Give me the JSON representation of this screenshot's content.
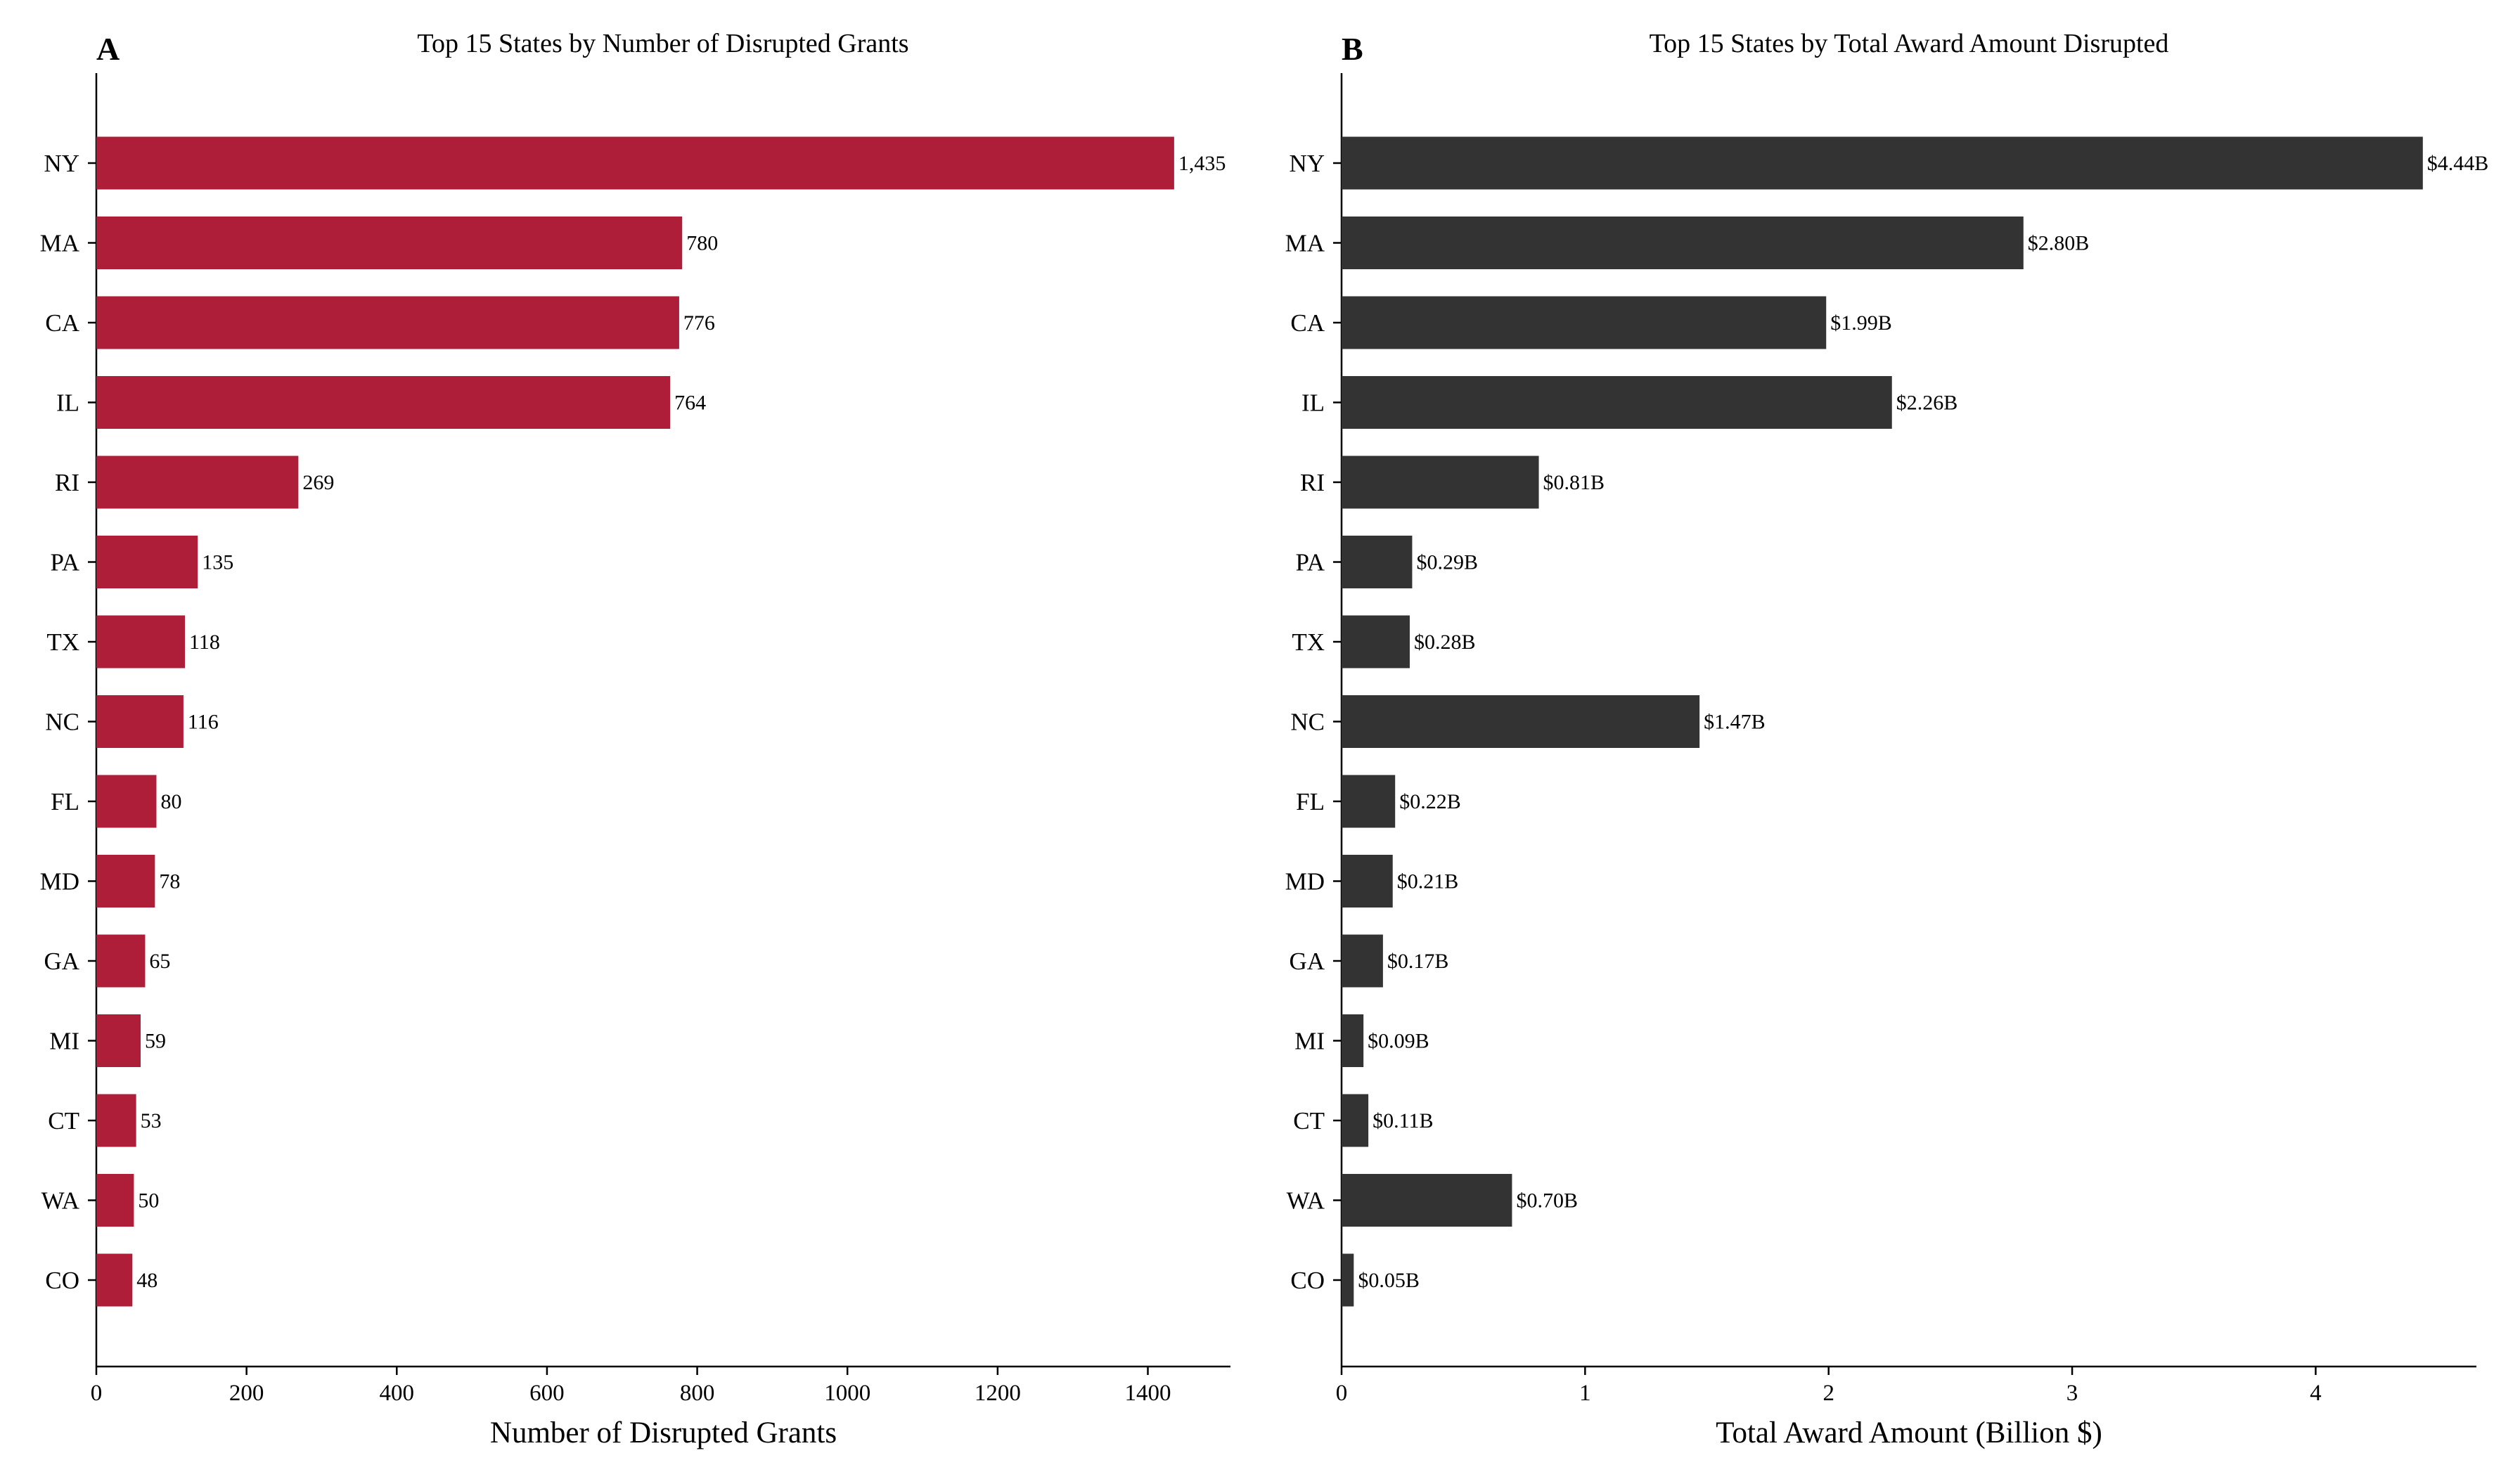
{
  "chart_data": [
    {
      "type": "bar",
      "orientation": "horizontal",
      "panel": "A",
      "title": "Top 15 States by Number of Disrupted Grants",
      "xlabel": "Number of Disrupted Grants",
      "ylabel": "",
      "xlim": [
        0,
        1510
      ],
      "xticks": [
        0,
        200,
        400,
        600,
        800,
        1000,
        1200,
        1400
      ],
      "categories": [
        "NY",
        "MA",
        "CA",
        "IL",
        "RI",
        "PA",
        "TX",
        "NC",
        "FL",
        "MD",
        "GA",
        "MI",
        "CT",
        "WA",
        "CO"
      ],
      "values": [
        1435,
        780,
        776,
        764,
        269,
        135,
        118,
        116,
        80,
        78,
        65,
        59,
        53,
        50,
        48
      ],
      "data_labels": [
        "1,435",
        "780",
        "776",
        "764",
        "269",
        "135",
        "118",
        "116",
        "80",
        "78",
        "65",
        "59",
        "53",
        "50",
        "48"
      ],
      "color": "#ae1e39",
      "grid": false,
      "legend": "none"
    },
    {
      "type": "bar",
      "orientation": "horizontal",
      "panel": "B",
      "title": "Top 15 States by Total Award Amount Disrupted",
      "xlabel": "Total Award Amount (Billion $)",
      "ylabel": "",
      "xlim": [
        0,
        4.66
      ],
      "xticks": [
        0,
        1,
        2,
        3,
        4
      ],
      "categories": [
        "NY",
        "MA",
        "CA",
        "IL",
        "RI",
        "PA",
        "TX",
        "NC",
        "FL",
        "MD",
        "GA",
        "MI",
        "CT",
        "WA",
        "CO"
      ],
      "values": [
        4.44,
        2.8,
        1.99,
        2.26,
        0.81,
        0.29,
        0.28,
        1.47,
        0.22,
        0.21,
        0.17,
        0.09,
        0.11,
        0.7,
        0.05
      ],
      "data_labels": [
        "$4.44B",
        "$2.80B",
        "$1.99B",
        "$2.26B",
        "$0.81B",
        "$0.29B",
        "$0.28B",
        "$1.47B",
        "$0.22B",
        "$0.21B",
        "$0.17B",
        "$0.09B",
        "$0.11B",
        "$0.70B",
        "$0.05B"
      ],
      "color": "#333333",
      "grid": false,
      "legend": "none"
    }
  ]
}
